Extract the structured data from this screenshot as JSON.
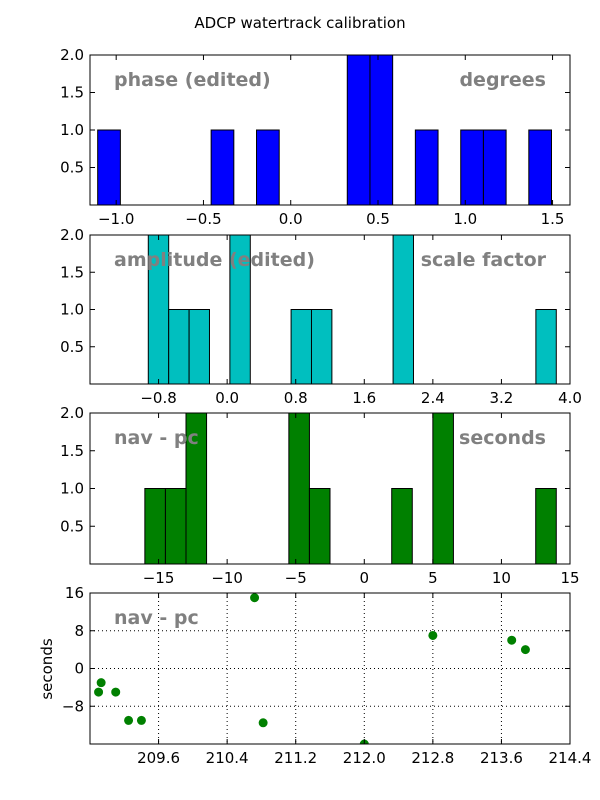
{
  "title": "ADCP watertrack calibration",
  "chart_data": [
    {
      "type": "bar",
      "subtype": "histogram",
      "overlay_left": "phase (edited)",
      "overlay_right": "degrees",
      "color": "#0000ff",
      "xlim": [
        -1.15,
        1.6
      ],
      "ylim": [
        0,
        2.0
      ],
      "xticks": [
        -1.0,
        -0.5,
        0.0,
        0.5,
        1.0,
        1.5
      ],
      "xtick_labels": [
        "−1.0",
        "−0.5",
        "0.0",
        "0.5",
        "1.0",
        "1.5"
      ],
      "yticks": [
        0.5,
        1.0,
        1.5,
        2.0
      ],
      "ytick_labels": [
        "0.5",
        "1.0",
        "1.5",
        "2.0"
      ],
      "bin_edges": [
        -1.106,
        -0.976,
        -0.846,
        -0.716,
        -0.586,
        -0.456,
        -0.326,
        -0.196,
        -0.066,
        0.064,
        0.194,
        0.324,
        0.454,
        0.584,
        0.714,
        0.844,
        0.974,
        1.104,
        1.234,
        1.364,
        1.494
      ],
      "counts": [
        1,
        0,
        0,
        0,
        0,
        1,
        0,
        1,
        0,
        0,
        0,
        2,
        2,
        0,
        1,
        0,
        1,
        1,
        0,
        1
      ],
      "grid": false
    },
    {
      "type": "bar",
      "subtype": "histogram",
      "overlay_left": "amplitude (edited)",
      "overlay_right": "scale factor",
      "color": "#00bfbf",
      "xlim": [
        -1.6,
        4.0
      ],
      "ylim": [
        0,
        2.0
      ],
      "xticks": [
        -0.8,
        0.0,
        0.8,
        1.6,
        2.4,
        3.2,
        4.0
      ],
      "xtick_labels": [
        "−0.8",
        "0.0",
        "0.8",
        "1.6",
        "2.4",
        "3.2",
        "4.0"
      ],
      "yticks": [
        0.5,
        1.0,
        1.5,
        2.0
      ],
      "ytick_labels": [
        "0.5",
        "1.0",
        "1.5",
        "2.0"
      ],
      "bin_edges": [
        -0.92,
        -0.682,
        -0.444,
        -0.206,
        0.032,
        0.27,
        0.508,
        0.746,
        0.984,
        1.222,
        1.46,
        1.698,
        1.936,
        2.174,
        2.412,
        2.65,
        2.888,
        3.126,
        3.364,
        3.602,
        3.84
      ],
      "counts": [
        2,
        1,
        1,
        0,
        2,
        0,
        0,
        1,
        1,
        0,
        0,
        0,
        2,
        0,
        0,
        0,
        0,
        0,
        0,
        1
      ],
      "grid": false
    },
    {
      "type": "bar",
      "subtype": "histogram",
      "overlay_left": "nav - pc",
      "overlay_right": "seconds",
      "color": "#008000",
      "xlim": [
        -20,
        15
      ],
      "ylim": [
        0,
        2.0
      ],
      "xticks": [
        -15,
        -10,
        -5,
        0,
        5,
        10,
        15
      ],
      "xtick_labels": [
        "−15",
        "−10",
        "−5",
        "0",
        "5",
        "10",
        "15"
      ],
      "yticks": [
        0.5,
        1.0,
        1.5,
        2.0
      ],
      "ytick_labels": [
        "0.5",
        "1.0",
        "1.5",
        "2.0"
      ],
      "bin_edges": [
        -16.0,
        -14.5,
        -13.0,
        -11.5,
        -10.0,
        -8.5,
        -7.0,
        -5.5,
        -4.0,
        -2.5,
        -1.0,
        0.5,
        2.0,
        3.5,
        5.0,
        6.5,
        8.0,
        9.5,
        11.0,
        12.5,
        14.0
      ],
      "counts": [
        1,
        1,
        2,
        0,
        0,
        0,
        0,
        2,
        1,
        0,
        0,
        0,
        1,
        0,
        2,
        0,
        0,
        0,
        0,
        1
      ],
      "grid": false
    },
    {
      "type": "scatter",
      "overlay_left": "nav - pc",
      "ylabel": "seconds",
      "color": "#008000",
      "xlim": [
        208.8,
        214.4
      ],
      "ylim": [
        -16,
        16
      ],
      "xticks": [
        209.6,
        210.4,
        211.2,
        212.0,
        212.8,
        213.6,
        214.4
      ],
      "xtick_labels": [
        "209.6",
        "210.4",
        "211.2",
        "212.0",
        "212.8",
        "213.6",
        "214.4"
      ],
      "yticks": [
        -8,
        0,
        8,
        16
      ],
      "ytick_labels": [
        "−8",
        "0",
        "8",
        "16"
      ],
      "grid": true,
      "x": [
        208.9,
        208.93,
        209.1,
        209.25,
        209.4,
        210.72,
        210.82,
        212.0,
        212.8,
        213.72,
        213.88
      ],
      "y": [
        -5,
        -3,
        -5,
        -11,
        -11,
        15,
        -11.5,
        -16,
        7,
        6,
        4
      ]
    }
  ]
}
